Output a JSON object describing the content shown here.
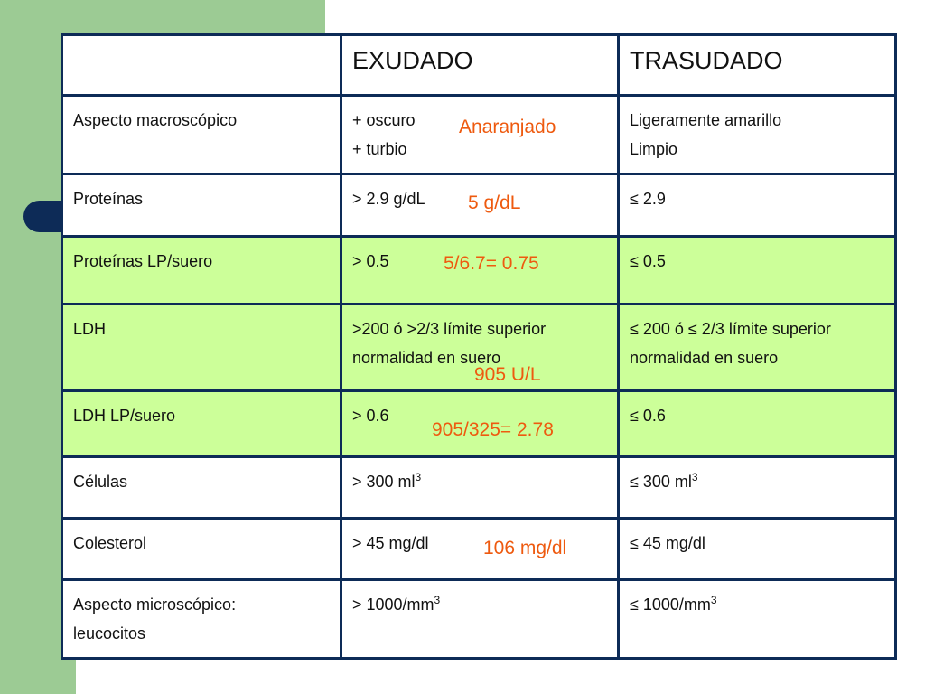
{
  "table": {
    "header": {
      "col1": "",
      "col2": "EXUDADO",
      "col3": "TRASUDADO"
    },
    "rows": [
      {
        "label": "Aspecto macroscópico",
        "exudado_lines": [
          "+ oscuro",
          "+ turbio"
        ],
        "trasudado_lines": [
          "Ligeramente amarillo",
          "Limpio"
        ],
        "annotation": "Anaranjado"
      },
      {
        "label": "Proteínas",
        "exudado": "> 2.9 g/dL",
        "trasudado": "≤ 2.9",
        "annotation": "5 g/dL"
      },
      {
        "label": "Proteínas LP/suero",
        "exudado": "> 0.5",
        "trasudado": "≤ 0.5",
        "annotation": "5/6.7= 0.75"
      },
      {
        "label": "LDH",
        "exudado_lines": [
          ">200 ó >2/3 límite superior",
          "normalidad en suero"
        ],
        "trasudado_lines": [
          "≤ 200 ó ≤ 2/3 límite superior",
          "normalidad en suero"
        ],
        "annotation": "905 U/L"
      },
      {
        "label": "LDH LP/suero",
        "exudado": "> 0.6",
        "trasudado": "≤ 0.6",
        "annotation": "905/325= 2.78"
      },
      {
        "label": "Células",
        "exudado": "> 300 ml",
        "exudado_sup": "3",
        "trasudado": "≤ 300 ml",
        "trasudado_sup": "3"
      },
      {
        "label": "Colesterol",
        "exudado": "> 45 mg/dl",
        "trasudado": "≤ 45 mg/dl",
        "annotation": "106 mg/dl"
      },
      {
        "label_lines": [
          "Aspecto microscópico:",
          "leucocitos"
        ],
        "exudado": "> 1000/mm",
        "exudado_sup": "3",
        "trasudado": "≤ 1000/mm",
        "trasudado_sup": "3"
      }
    ]
  },
  "colors": {
    "border": "#0d2b57",
    "annotation": "#ee5a0f",
    "green_row": "#ccff99",
    "side_green": "#9ccb94"
  }
}
